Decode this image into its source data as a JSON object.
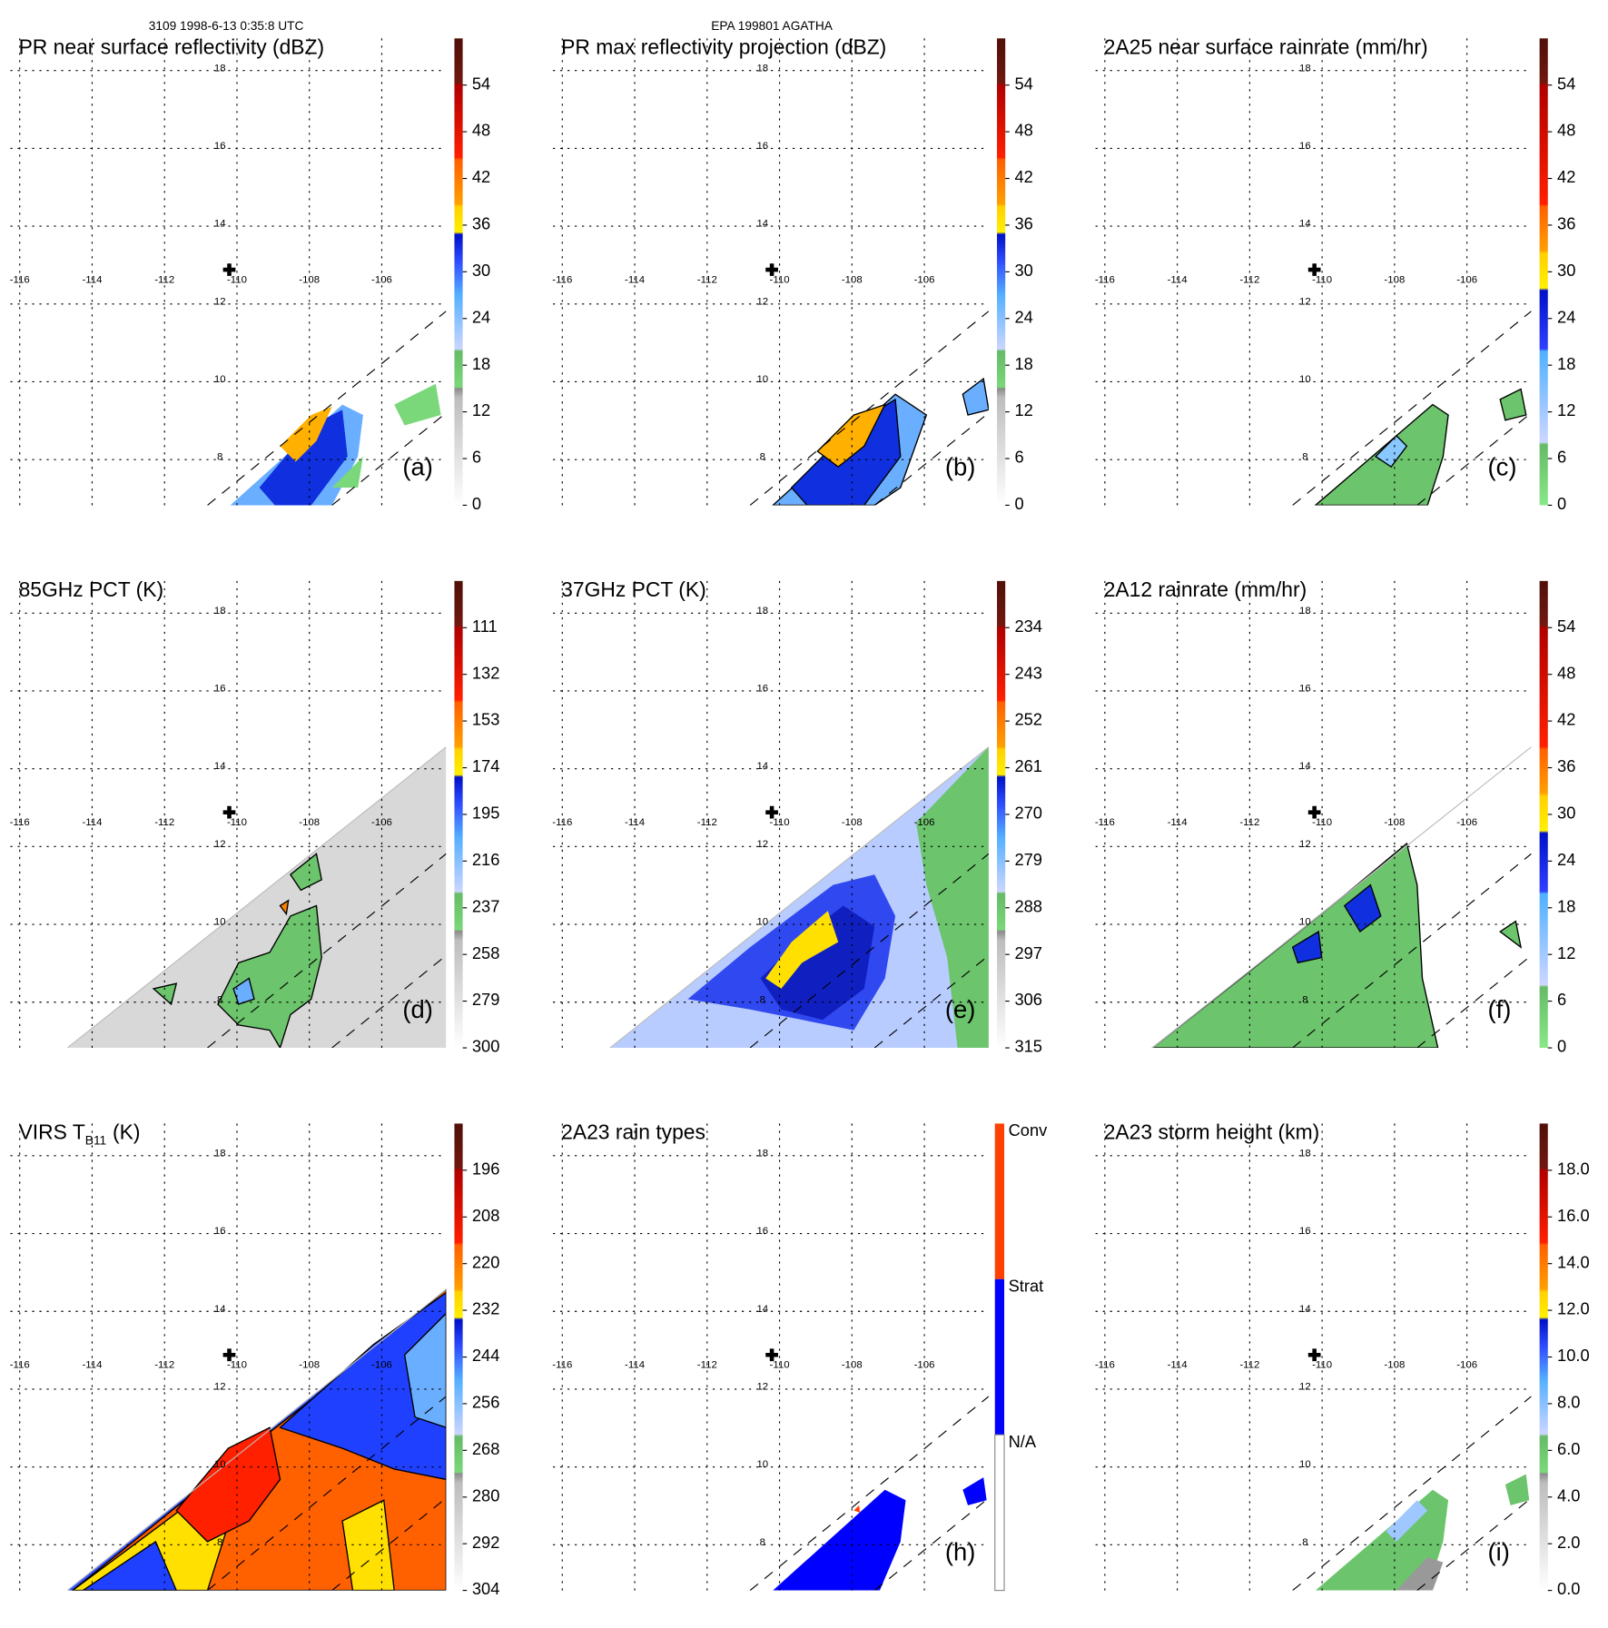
{
  "header": {
    "orbit_time": "3109 1998-6-13 0:35:8 UTC",
    "storm": "EPA 199801 AGATHA"
  },
  "chart_data": [
    {
      "id": "a",
      "type": "heatmap",
      "title": "PR near surface reflectivity (dBZ)",
      "label": "(a)",
      "xticks": [
        "-116",
        "-114",
        "-112",
        "-110",
        "-108",
        "-106"
      ],
      "yticks": [
        "18",
        "16",
        "14",
        "12",
        "10",
        "8"
      ],
      "colorbar": {
        "ticks": [
          "0",
          "6",
          "12",
          "18",
          "24",
          "30",
          "36",
          "42",
          "48",
          "54"
        ],
        "range": [
          0,
          60
        ]
      },
      "scheme": "std"
    },
    {
      "id": "b",
      "type": "heatmap",
      "title": "PR max reflectivity projection (dBZ)",
      "label": "(b)",
      "xticks": [
        "-116",
        "-114",
        "-112",
        "-110",
        "-108",
        "-106"
      ],
      "yticks": [
        "18",
        "16",
        "14",
        "12",
        "10",
        "8"
      ],
      "colorbar": {
        "ticks": [
          "0",
          "6",
          "12",
          "18",
          "24",
          "30",
          "36",
          "42",
          "48",
          "54"
        ],
        "range": [
          0,
          60
        ]
      },
      "scheme": "std"
    },
    {
      "id": "c",
      "type": "heatmap",
      "title": "2A25 near surface rainrate (mm/hr)",
      "label": "(c)",
      "xticks": [
        "-116",
        "-114",
        "-112",
        "-110",
        "-108",
        "-106"
      ],
      "yticks": [
        "18",
        "16",
        "14",
        "12",
        "10",
        "8"
      ],
      "colorbar": {
        "ticks": [
          "0",
          "6",
          "12",
          "18",
          "24",
          "30",
          "36",
          "42",
          "48",
          "54"
        ],
        "range": [
          0,
          60
        ]
      },
      "scheme": "rain"
    },
    {
      "id": "d",
      "type": "heatmap",
      "title": "85GHz PCT (K)",
      "label": "(d)",
      "xticks": [
        "-116",
        "-114",
        "-112",
        "-110",
        "-108",
        "-106"
      ],
      "yticks": [
        "18",
        "16",
        "14",
        "12",
        "10",
        "8"
      ],
      "colorbar": {
        "ticks": [
          "300",
          "279",
          "258",
          "237",
          "216",
          "195",
          "174",
          "153",
          "132",
          "111"
        ],
        "range": [
          300,
          90
        ]
      },
      "scheme": "std"
    },
    {
      "id": "e",
      "type": "heatmap",
      "title": "37GHz PCT (K)",
      "label": "(e)",
      "xticks": [
        "-116",
        "-114",
        "-112",
        "-110",
        "-108",
        "-106"
      ],
      "yticks": [
        "18",
        "16",
        "14",
        "12",
        "10",
        "8"
      ],
      "colorbar": {
        "ticks": [
          "315",
          "306",
          "297",
          "288",
          "279",
          "270",
          "261",
          "252",
          "243",
          "234"
        ],
        "range": [
          315,
          225
        ]
      },
      "scheme": "std"
    },
    {
      "id": "f",
      "type": "heatmap",
      "title": "2A12 rainrate (mm/hr)",
      "label": "(f)",
      "xticks": [
        "-116",
        "-114",
        "-112",
        "-110",
        "-108",
        "-106"
      ],
      "yticks": [
        "18",
        "16",
        "14",
        "12",
        "10",
        "8"
      ],
      "colorbar": {
        "ticks": [
          "0",
          "6",
          "12",
          "18",
          "24",
          "30",
          "36",
          "42",
          "48",
          "54"
        ],
        "range": [
          0,
          60
        ]
      },
      "scheme": "rain"
    },
    {
      "id": "g",
      "type": "heatmap",
      "title": "VIRS T",
      "title_sub": "B11",
      "title_unit": "(K)",
      "label": "",
      "xticks": [
        "-116",
        "-114",
        "-112",
        "-110",
        "-108",
        "-106"
      ],
      "yticks": [
        "18",
        "16",
        "14",
        "12",
        "10",
        "8"
      ],
      "colorbar": {
        "ticks": [
          "304",
          "292",
          "280",
          "268",
          "256",
          "244",
          "232",
          "220",
          "208",
          "196"
        ],
        "range": [
          304,
          184
        ]
      },
      "scheme": "std"
    },
    {
      "id": "h",
      "type": "heatmap",
      "title": "2A23 rain types",
      "label": "(h)",
      "xticks": [
        "-116",
        "-114",
        "-112",
        "-110",
        "-108",
        "-106"
      ],
      "yticks": [
        "18",
        "16",
        "14",
        "12",
        "10",
        "8"
      ],
      "colorbar": {
        "ticks": [
          "N/A",
          "Strat",
          "Conv"
        ],
        "categories": [
          "N/A",
          "Strat",
          "Conv"
        ]
      },
      "scheme": "cat"
    },
    {
      "id": "i",
      "type": "heatmap",
      "title": "2A23 storm height (km)",
      "label": "(i)",
      "xticks": [
        "-116",
        "-114",
        "-112",
        "-110",
        "-108",
        "-106"
      ],
      "yticks": [
        "18",
        "16",
        "14",
        "12",
        "10",
        "8"
      ],
      "colorbar": {
        "ticks": [
          "0.0",
          "2.0",
          "4.0",
          "6.0",
          "8.0",
          "10.0",
          "12.0",
          "14.0",
          "16.0",
          "18.0"
        ],
        "range": [
          0,
          20
        ]
      },
      "scheme": "std"
    }
  ],
  "colors": {
    "grid": "#000000",
    "std_bar": [
      "#ffffff",
      "#8c8c8c",
      "#6cc46c",
      "#c8d4ff",
      "#4aa8ff",
      "#0010e0",
      "#ffe800",
      "#ff8c00",
      "#e01000",
      "#5a1208"
    ],
    "conv": "#ff4000",
    "strat": "#0000ff"
  }
}
